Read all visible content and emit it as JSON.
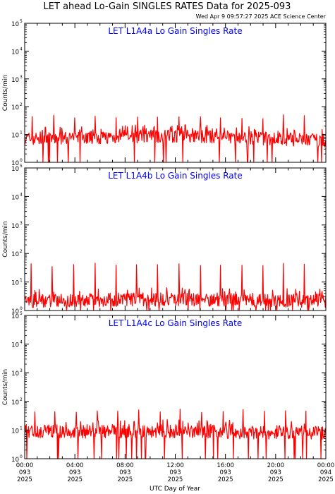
{
  "header": {
    "title": "LET ahead Lo-Gain SINGLES RATES Data for 2025-093",
    "timestamp": "Wed Apr  9 09:57:27 2025 ACE Science Center"
  },
  "colors": {
    "series": "#ff0000",
    "panel_title": "#0000ff",
    "axes": "#000000"
  },
  "chart_data": [
    {
      "type": "line",
      "title": "LET L1A4a Lo Gain Singles Rate",
      "ylabel": "Counts/min",
      "yscale": "log",
      "ylim": [
        1,
        100000
      ],
      "xlim": [
        0,
        24
      ],
      "x_unit": "hours UTC",
      "spike_times": [
        0.6,
        2.3,
        4.0,
        5.6,
        7.3,
        9.0,
        10.6,
        12.3,
        14.0,
        15.6,
        17.3,
        19.0,
        20.6,
        22.3
      ],
      "spike_peak": 45,
      "baseline": [
        7,
        9,
        6
      ],
      "series": [
        {
          "x": [
            0,
            24
          ],
          "y": [
            7,
            6
          ]
        }
      ]
    },
    {
      "type": "line",
      "title": "LET L1A4b Lo Gain Singles Rate",
      "ylabel": "Counts/min",
      "yscale": "log",
      "ylim": [
        1,
        100000
      ],
      "xlim": [
        0,
        24
      ],
      "x_unit": "hours UTC",
      "spike_times": [
        0.5,
        2.2,
        3.9,
        5.6,
        7.3,
        8.9,
        10.6,
        12.3,
        14.0,
        15.6,
        17.3,
        19.0,
        20.6,
        22.3
      ],
      "spike_peak": 40,
      "baseline": [
        2.2,
        2.5,
        2.2
      ],
      "series": [
        {
          "x": [
            0,
            24
          ],
          "y": [
            2.2,
            2.2
          ]
        }
      ]
    },
    {
      "type": "line",
      "title": "LET L1A4c Lo Gain Singles Rate",
      "ylabel": "Counts/min",
      "yscale": "log",
      "ylim": [
        1,
        100000
      ],
      "xlim": [
        0,
        24
      ],
      "x_unit": "hours UTC",
      "spike_times": [
        0.8,
        2.4,
        4.1,
        5.8,
        7.4,
        9.1,
        10.8,
        12.4,
        14.1,
        15.8,
        17.4,
        19.1,
        20.8,
        22.4
      ],
      "spike_peak": 50,
      "baseline": [
        9,
        9,
        8
      ],
      "series": [
        {
          "x": [
            0,
            24
          ],
          "y": [
            9,
            8
          ]
        }
      ]
    }
  ],
  "y_ticks": [
    {
      "base": "10",
      "exp": "0"
    },
    {
      "base": "10",
      "exp": "1"
    },
    {
      "base": "10",
      "exp": "2"
    },
    {
      "base": "10",
      "exp": "3"
    },
    {
      "base": "10",
      "exp": "4"
    },
    {
      "base": "10",
      "exp": "5"
    }
  ],
  "x_ticks": [
    {
      "hour": 0,
      "time": "00:00",
      "doy": "093",
      "year": "2025"
    },
    {
      "hour": 4,
      "time": "04:00",
      "doy": "093",
      "year": "2025"
    },
    {
      "hour": 8,
      "time": "08:00",
      "doy": "093",
      "year": "2025"
    },
    {
      "hour": 12,
      "time": "12:00",
      "doy": "093",
      "year": "2025"
    },
    {
      "hour": 16,
      "time": "16:00",
      "doy": "093",
      "year": "2025"
    },
    {
      "hour": 20,
      "time": "20:00",
      "doy": "093",
      "year": "2025"
    },
    {
      "hour": 24,
      "time": "00:00",
      "doy": "094",
      "year": "2025"
    }
  ],
  "x_axis_label": "UTC Day of Year"
}
